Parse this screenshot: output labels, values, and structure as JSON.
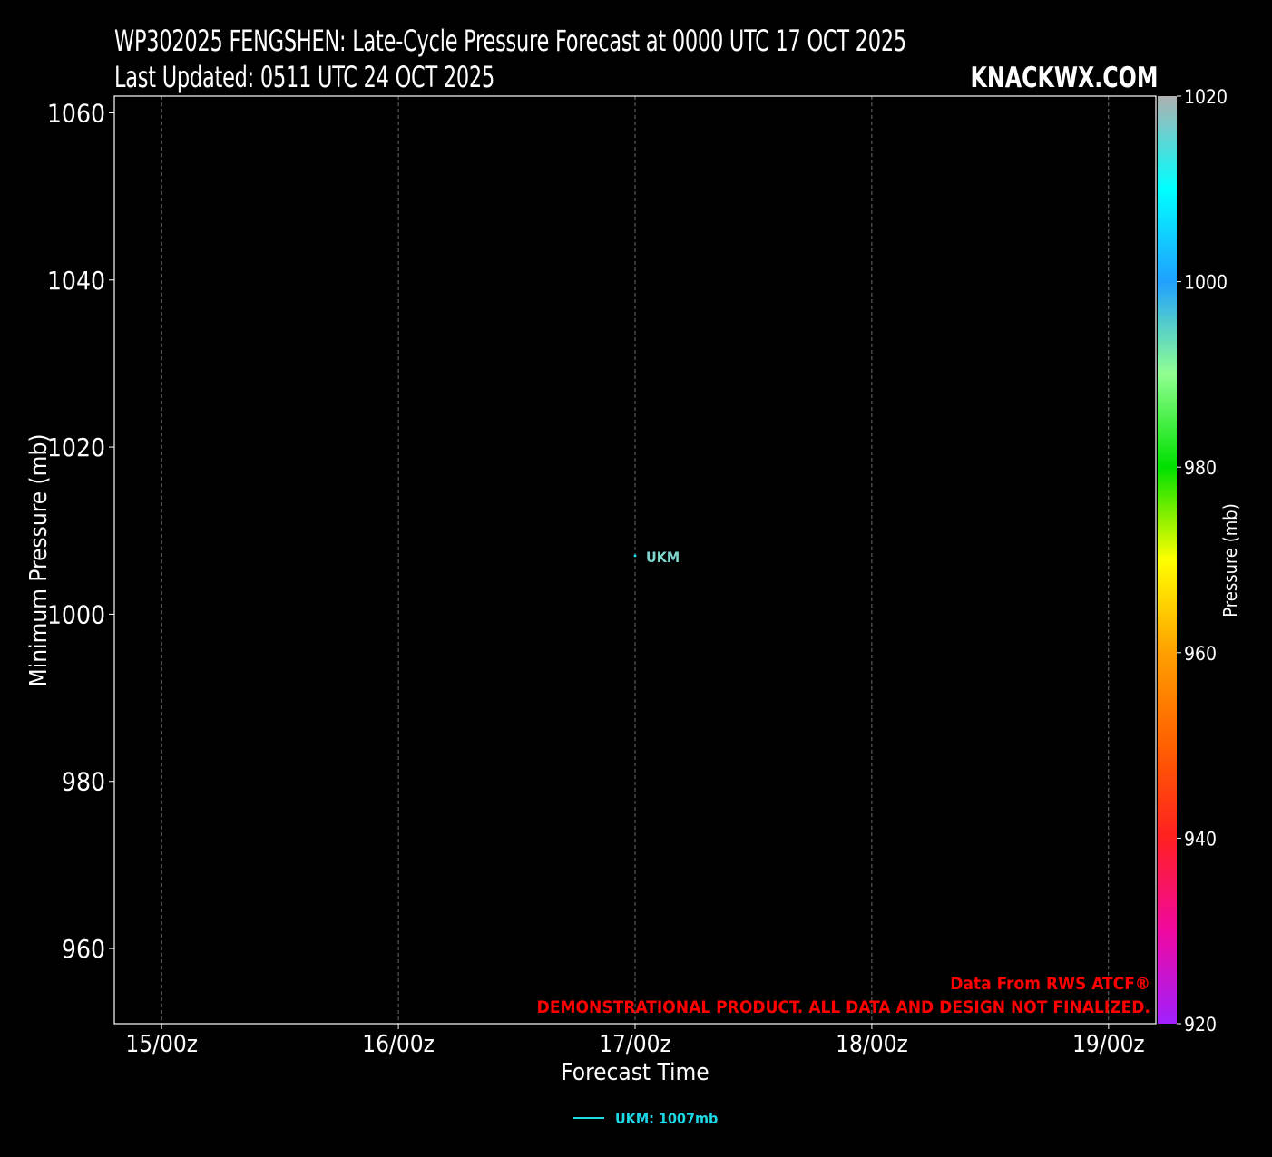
{
  "header": {
    "title": "WP302025 FENGSHEN: Late-Cycle Pressure Forecast at 0000 UTC 17 OCT 2025",
    "subtitle": "Last Updated: 0511 UTC 24 OCT 2025",
    "brand": "KNACKWX.COM"
  },
  "footer": {
    "credit": "Data From RWS ATCF®",
    "disclaimer": "DEMONSTRATIONAL PRODUCT. ALL DATA AND DESIGN NOT FINALIZED."
  },
  "colors": {
    "background": "#000000",
    "axis": "#ffffff",
    "grid": "#888888",
    "credit_text": "#ff0000",
    "ukm_series": "#1fd8e6",
    "ukm_label": "#7fd6cf"
  },
  "chart_data": {
    "type": "line",
    "title": "WP302025 FENGSHEN: Late-Cycle Pressure Forecast at 0000 UTC 17 OCT 2025",
    "xlabel": "Forecast Time",
    "ylabel": "Minimum Pressure (mb)",
    "x_ticks": [
      "15/00z",
      "16/00z",
      "17/00z",
      "18/00z",
      "19/00z"
    ],
    "x_tick_hours": [
      -48,
      -24,
      0,
      24,
      48
    ],
    "xlim_hours": [
      -52.8,
      52.8
    ],
    "y_ticks": [
      960,
      980,
      1000,
      1020,
      1040,
      1060
    ],
    "ylim": [
      951,
      1062
    ],
    "grid": "vertical dashed",
    "legend_position": "bottom-center",
    "series": [
      {
        "name": "UKM",
        "legend_label": "UKM: 1007mb",
        "color": "#1fd8e6",
        "points": [
          {
            "hours": 0,
            "pressure": 1007
          }
        ]
      }
    ],
    "annotations": [
      {
        "text": "UKM",
        "hours": 0,
        "pressure": 1007,
        "color": "#7fd6cf"
      }
    ],
    "colorbar": {
      "label": "Pressure (mb)",
      "range": [
        920,
        1020
      ],
      "ticks": [
        920,
        940,
        960,
        980,
        1000,
        1020
      ],
      "stops": [
        {
          "value": 920,
          "color": "#a020ff"
        },
        {
          "value": 930,
          "color": "#f008a0"
        },
        {
          "value": 940,
          "color": "#ff2020"
        },
        {
          "value": 950,
          "color": "#ff6000"
        },
        {
          "value": 960,
          "color": "#ffa000"
        },
        {
          "value": 970,
          "color": "#ffff00"
        },
        {
          "value": 980,
          "color": "#00e000"
        },
        {
          "value": 990,
          "color": "#90ff90"
        },
        {
          "value": 1000,
          "color": "#20a0ff"
        },
        {
          "value": 1010,
          "color": "#00ffff"
        },
        {
          "value": 1020,
          "color": "#b0b0b0"
        }
      ]
    }
  }
}
